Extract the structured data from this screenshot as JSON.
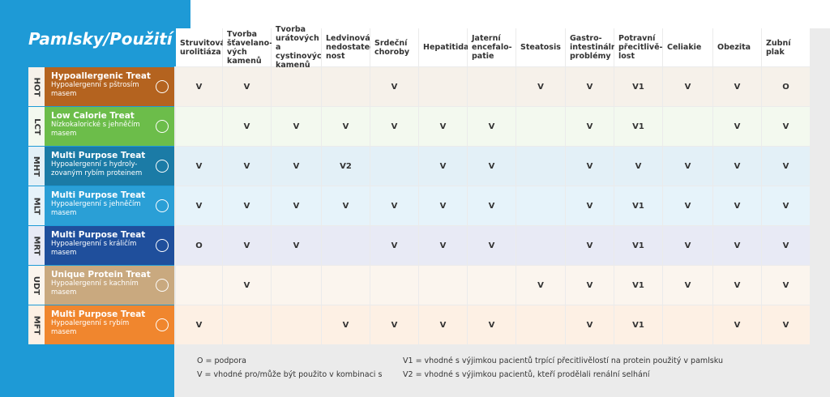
{
  "title": "Pamlsky/Použití",
  "columns": [
    "Struvitová\nurolitiáza",
    "Tvorba\nšťavelano-\nvých\nkamenů",
    "Tvorba\nurátových a\ncystinových\nkamenů",
    "Ledvinová\nnedostateč-\nnost",
    "Srdeční\nchoroby",
    "Hepatitida",
    "Jaterní\nencefalo-\npatie",
    "Steatosis",
    "Gastro-\nintestinální\nproblémy",
    "Potravní\npřecitlivě-\nlost",
    "Celiakie",
    "Obezita",
    "Zubní plak"
  ],
  "rows": [
    {
      "code": "HOT",
      "name": "Hypoallergenic Treat",
      "subtitle": "Hypoalergenní s pštrosím masem",
      "values": [
        "V",
        "V",
        null,
        null,
        "V",
        null,
        null,
        "V",
        "V",
        "V1",
        "V",
        "V",
        "O"
      ]
    },
    {
      "code": "LCT",
      "name": "Low Calorie Treat",
      "subtitle": "Nízkokalorické s jehněčím masem",
      "values": [
        null,
        "V",
        "V",
        "V",
        "V",
        "V",
        "V",
        null,
        "V",
        "V1",
        null,
        "V",
        "V"
      ]
    },
    {
      "code": "MHT",
      "name": "Multi Purpose Treat",
      "subtitle": "Hypoalergenní s hydroly-zovaným rybím proteinem",
      "values": [
        "V",
        "V",
        "V",
        "V2",
        null,
        "V",
        "V",
        null,
        "V",
        "V",
        "V",
        "V",
        "V"
      ]
    },
    {
      "code": "MLT",
      "name": "Multi Purpose Treat",
      "subtitle": "Hypoalergenní s jehněčím masem",
      "values": [
        "V",
        "V",
        "V",
        "V",
        "V",
        "V",
        "V",
        null,
        "V",
        "V1",
        "V",
        "V",
        "V"
      ]
    },
    {
      "code": "MRT",
      "name": "Multi Purpose Treat",
      "subtitle": "Hypoalergenní s králičím masem",
      "values": [
        "O",
        "V",
        "V",
        null,
        "V",
        "V",
        "V",
        null,
        "V",
        "V1",
        "V",
        "V",
        "V"
      ]
    },
    {
      "code": "UDT",
      "name": "Unique Protein Treat",
      "subtitle": "Hypoalergenní s kachním masem",
      "values": [
        null,
        "V",
        null,
        null,
        null,
        null,
        null,
        "V",
        "V",
        "V1",
        "V",
        "V",
        "V"
      ]
    },
    {
      "code": "MFT",
      "name": "Multi Purpose Treat",
      "subtitle": "Hypoalergenní s rybím masem",
      "values": [
        "V",
        null,
        null,
        "V",
        "V",
        "V",
        "V",
        null,
        "V",
        "V1",
        null,
        "V",
        "V"
      ]
    }
  ],
  "legend": [
    "O = podpora",
    "V = vhodné pro/může být použito v kombinaci s",
    "V1 = vhodné s výjimkou pacientů trpící přecitlivělostí na protein použitý v pamlsku",
    "V2 = vhodné s výjimkou pacientů, kteří prodělali renální selhání"
  ]
}
